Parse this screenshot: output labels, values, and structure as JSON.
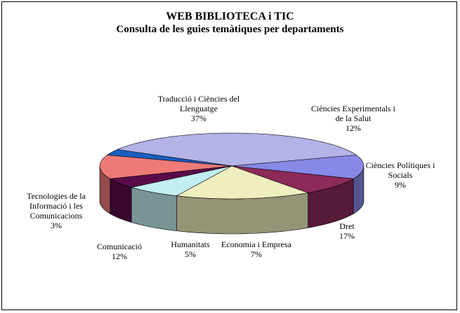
{
  "chart_data": {
    "type": "pie",
    "title": "WEB BIBLIOTECA i TIC",
    "subtitle": "Consulta de les guies temàtiques per departaments",
    "slices": [
      {
        "key": "traduccio",
        "label_lines": [
          "Traducció  i Ciències del",
          "Llenguatge",
          "37%"
        ],
        "value": 37,
        "color": "#b3b3e8"
      },
      {
        "key": "experimentals",
        "label_lines": [
          "Ciències Experimentals  i",
          "de la Salut",
          "12%"
        ],
        "value": 12,
        "color": "#8888e6"
      },
      {
        "key": "politiques",
        "label_lines": [
          "Ciències Polítiques  i",
          "Socials",
          "9%"
        ],
        "value": 9,
        "color": "#8c2a58"
      },
      {
        "key": "dret",
        "label_lines": [
          "Dret",
          "17%"
        ],
        "value": 17,
        "color": "#eeeebf"
      },
      {
        "key": "economia",
        "label_lines": [
          "Economia  i Empresa",
          "7%"
        ],
        "value": 7,
        "color": "#c2eef0"
      },
      {
        "key": "humanitats",
        "label_lines": [
          "Humanitats",
          "5%"
        ],
        "value": 5,
        "color": "#5a0a4a"
      },
      {
        "key": "comunicacio",
        "label_lines": [
          "Comunicació",
          "12%"
        ],
        "value": 12,
        "color": "#ee7a78"
      },
      {
        "key": "tic",
        "label_lines": [
          "Tecnologies  de la",
          "Informació  i les",
          "Comunicacions",
          "3%"
        ],
        "value": 3,
        "color": "#1a5fc0"
      }
    ]
  }
}
